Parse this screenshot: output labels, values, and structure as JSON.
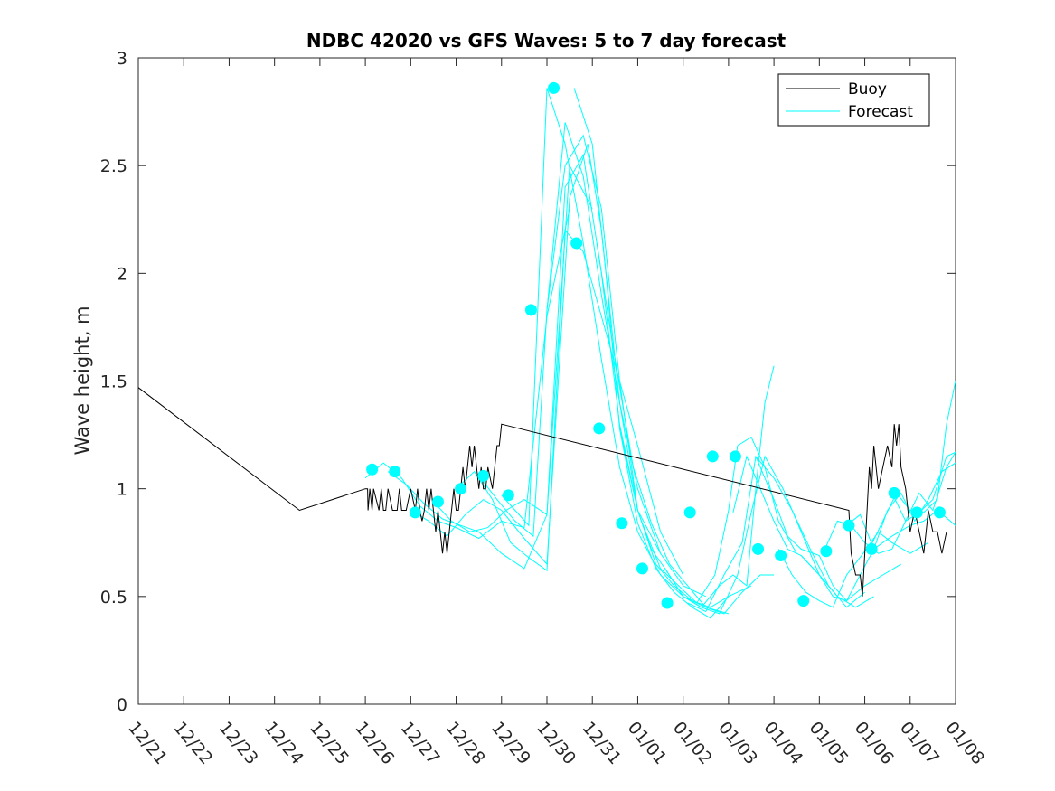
{
  "chart_data": {
    "type": "line",
    "title": "NDBC 42020 vs GFS Waves: 5 to 7 day forecast",
    "xlabel": "",
    "ylabel": "Wave height, m",
    "xlim": [
      0,
      18
    ],
    "ylim": [
      0,
      3
    ],
    "x_ticks": [
      0,
      1,
      2,
      3,
      4,
      5,
      6,
      7,
      8,
      9,
      10,
      11,
      12,
      13,
      14,
      15,
      16,
      17,
      18
    ],
    "x_tick_labels": [
      "12/21",
      "12/22",
      "12/23",
      "12/24",
      "12/25",
      "12/26",
      "12/27",
      "12/28",
      "12/29",
      "12/30",
      "12/31",
      "01/01",
      "01/02",
      "01/03",
      "01/04",
      "01/05",
      "01/06",
      "01/07",
      "01/08"
    ],
    "y_ticks": [
      0,
      0.5,
      1,
      1.5,
      2,
      2.5,
      3
    ],
    "y_tick_labels": [
      "0",
      "0.5",
      "1",
      "1.5",
      "2",
      "2.5",
      "3"
    ],
    "legend": {
      "position": "top-right",
      "entries": [
        {
          "label": "Buoy",
          "color": "#000000"
        },
        {
          "label": "Forecast",
          "color": "#00ffff"
        }
      ]
    },
    "buoy_color": "#000000",
    "forecast_color": "#00ffff",
    "series": [
      {
        "name": "Buoy",
        "x": [
          0,
          3.55,
          5.0,
          5.05,
          5.06,
          5.1,
          5.15,
          5.18,
          5.3,
          5.35,
          5.4,
          5.45,
          5.5,
          5.6,
          5.7,
          5.75,
          5.8,
          5.9,
          6.0,
          6.1,
          6.15,
          6.2,
          6.25,
          6.3,
          6.35,
          6.4,
          6.45,
          6.5,
          6.55,
          6.6,
          6.65,
          6.7,
          6.75,
          6.8,
          6.85,
          6.9,
          6.95,
          7.0,
          7.05,
          7.1,
          7.15,
          7.2,
          7.25,
          7.3,
          7.35,
          7.4,
          7.45,
          7.5,
          7.55,
          7.6,
          7.65,
          7.7,
          7.8,
          7.9,
          7.95,
          8.0,
          15.65,
          15.7,
          15.8,
          15.9,
          15.95,
          16.0,
          16.05,
          16.1,
          16.15,
          16.2,
          16.3,
          16.4,
          16.5,
          16.6,
          16.65,
          16.7,
          16.75,
          16.8,
          16.9,
          17.0,
          17.1,
          17.2,
          17.3,
          17.35,
          17.4,
          17.5,
          17.6,
          17.7,
          17.8
        ],
        "y": [
          1.47,
          0.9,
          1.0,
          1.0,
          0.9,
          1.0,
          0.9,
          1.0,
          0.9,
          1.0,
          0.9,
          0.9,
          1.0,
          0.9,
          0.9,
          1.0,
          0.9,
          0.9,
          1.0,
          0.9,
          1.0,
          0.9,
          0.85,
          0.9,
          1.0,
          0.9,
          1.0,
          0.9,
          0.8,
          0.9,
          0.8,
          0.7,
          0.8,
          0.7,
          0.8,
          0.9,
          1.0,
          0.9,
          0.9,
          1.0,
          1.1,
          1.0,
          1.1,
          1.2,
          1.1,
          1.2,
          1.1,
          1.0,
          1.1,
          1.0,
          1.0,
          1.1,
          1.0,
          1.2,
          1.2,
          1.3,
          0.9,
          0.7,
          0.6,
          0.6,
          0.5,
          0.7,
          0.9,
          1.1,
          1.0,
          1.2,
          1.0,
          1.1,
          1.2,
          1.1,
          1.3,
          1.2,
          1.3,
          1.1,
          1.0,
          0.8,
          0.9,
          0.8,
          0.7,
          0.8,
          0.9,
          0.8,
          0.8,
          0.7,
          0.8
        ]
      },
      {
        "name": "Forecast",
        "x": [
          5.0,
          5.4,
          5.8,
          6.2,
          6.6,
          7.0,
          7.5,
          8.0,
          8.5,
          9.0,
          9.5
        ],
        "y": [
          1.05,
          1.12,
          1.05,
          0.92,
          0.85,
          0.82,
          0.77,
          0.85,
          0.82,
          1.8,
          2.3
        ]
      },
      {
        "name": "Forecast",
        "x": [
          5.5,
          5.9,
          6.3,
          6.7,
          7.1,
          7.5,
          8.0,
          8.5,
          9.0,
          9.5,
          10.0
        ],
        "y": [
          1.08,
          1.02,
          0.93,
          0.86,
          0.83,
          0.8,
          0.7,
          0.63,
          0.88,
          2.5,
          2.3
        ]
      },
      {
        "name": "Forecast",
        "x": [
          6.0,
          6.4,
          6.8,
          7.2,
          7.6,
          8.0,
          8.5,
          9.0,
          9.5,
          9.9,
          10.2,
          10.6,
          11.0
        ],
        "y": [
          0.9,
          0.85,
          0.78,
          0.88,
          0.95,
          0.9,
          0.77,
          0.65,
          2.35,
          2.6,
          2.2,
          1.4,
          0.9
        ]
      },
      {
        "name": "Forecast",
        "x": [
          6.5,
          6.9,
          7.3,
          7.7,
          8.1,
          8.5,
          9.0,
          9.4,
          9.8,
          10.2,
          10.6,
          11.0,
          11.5
        ],
        "y": [
          0.94,
          0.85,
          0.8,
          0.82,
          0.9,
          0.95,
          0.88,
          2.4,
          2.55,
          2.0,
          1.3,
          0.9,
          0.7
        ]
      },
      {
        "name": "Forecast",
        "x": [
          7.0,
          7.4,
          7.8,
          8.2,
          8.6,
          9.0,
          9.4,
          9.8,
          10.2,
          10.6,
          11.0,
          11.5,
          12.0
        ],
        "y": [
          1.0,
          1.08,
          0.95,
          0.75,
          0.68,
          0.62,
          2.2,
          2.1,
          1.8,
          1.5,
          1.2,
          0.8,
          0.6
        ]
      },
      {
        "name": "Forecast",
        "x": [
          7.5,
          7.9,
          8.3,
          8.7,
          9.0,
          9.4,
          9.8,
          10.2,
          10.6,
          11.0,
          11.5,
          12.0,
          12.5
        ],
        "y": [
          1.06,
          0.95,
          0.85,
          0.78,
          1.83,
          2.7,
          2.45,
          1.9,
          1.4,
          1.0,
          0.7,
          0.55,
          0.5
        ]
      },
      {
        "name": "Forecast",
        "x": [
          8.0,
          8.3,
          8.6,
          9.0,
          9.4,
          9.8,
          10.2,
          10.6,
          11.0,
          11.5,
          12.0,
          12.5,
          13.0
        ],
        "y": [
          0.97,
          0.9,
          0.83,
          2.86,
          2.6,
          2.14,
          1.6,
          1.1,
          0.8,
          0.6,
          0.5,
          0.45,
          0.42
        ]
      },
      {
        "name": "Forecast",
        "x": [
          9.0,
          9.4,
          9.8,
          10.2,
          10.6,
          11.0,
          11.4,
          11.8,
          12.2,
          12.6,
          13.0
        ],
        "y": [
          1.83,
          2.5,
          2.64,
          2.3,
          1.5,
          0.9,
          0.65,
          0.55,
          0.48,
          0.45,
          0.5
        ]
      },
      {
        "name": "Forecast",
        "x": [
          9.6,
          10.0,
          10.3,
          10.6,
          11.0,
          11.4,
          11.8,
          12.2,
          12.6,
          13.0,
          13.5
        ],
        "y": [
          2.86,
          2.6,
          2.0,
          1.28,
          0.84,
          0.63,
          0.52,
          0.45,
          0.4,
          0.5,
          0.55
        ]
      },
      {
        "name": "Forecast",
        "x": [
          10.1,
          10.5,
          10.9,
          11.3,
          11.7,
          12.1,
          12.5,
          12.9,
          13.3,
          13.7,
          14.0
        ],
        "y": [
          2.14,
          1.6,
          1.1,
          0.84,
          0.65,
          0.55,
          0.45,
          0.42,
          0.52,
          0.6,
          0.6
        ]
      },
      {
        "name": "Forecast",
        "x": [
          10.6,
          11.0,
          11.3,
          11.6,
          12.0,
          12.4,
          12.8,
          13.1,
          13.4,
          13.6,
          13.8,
          14.0
        ],
        "y": [
          1.28,
          0.9,
          0.72,
          0.63,
          0.5,
          0.45,
          0.55,
          0.6,
          0.55,
          1.0,
          1.4,
          1.57
        ]
      },
      {
        "name": "Forecast",
        "x": [
          11.1,
          11.5,
          11.9,
          12.3,
          12.7,
          13.0,
          13.2,
          13.5,
          13.8,
          14.1,
          14.5
        ],
        "y": [
          0.84,
          0.63,
          0.55,
          0.47,
          0.6,
          0.9,
          1.2,
          1.24,
          1.1,
          0.85,
          0.7
        ]
      },
      {
        "name": "Forecast",
        "x": [
          11.6,
          12.0,
          12.4,
          12.8,
          13.2,
          13.5,
          13.8,
          14.2,
          14.6,
          15.0,
          15.4
        ],
        "y": [
          0.63,
          0.5,
          0.45,
          0.42,
          0.6,
          0.89,
          1.15,
          1.0,
          0.8,
          0.6,
          0.5
        ]
      },
      {
        "name": "Forecast",
        "x": [
          12.1,
          12.5,
          12.9,
          13.3,
          13.6,
          14.0,
          14.4,
          14.8,
          15.2,
          15.6,
          16.0
        ],
        "y": [
          0.47,
          0.43,
          0.6,
          0.75,
          1.15,
          1.05,
          0.9,
          0.72,
          0.55,
          0.45,
          0.52
        ]
      },
      {
        "name": "Forecast",
        "x": [
          13.1,
          13.4,
          13.7,
          14.0,
          14.3,
          14.6,
          15.0,
          15.4,
          15.8,
          16.2
        ],
        "y": [
          0.89,
          1.15,
          1.0,
          0.85,
          0.72,
          0.69,
          0.6,
          0.5,
          0.45,
          0.5
        ]
      },
      {
        "name": "Forecast",
        "x": [
          13.6,
          14.0,
          14.3,
          14.6,
          15.0,
          15.3,
          15.6,
          16.0,
          16.4,
          16.8
        ],
        "y": [
          1.15,
          0.95,
          0.78,
          0.72,
          0.69,
          0.55,
          0.48,
          0.55,
          0.6,
          0.65
        ]
      },
      {
        "name": "Forecast",
        "x": [
          14.1,
          14.4,
          14.7,
          15.0,
          15.3,
          15.6,
          16.0,
          16.3,
          16.6,
          17.0,
          17.4
        ],
        "y": [
          0.72,
          0.6,
          0.52,
          0.48,
          0.45,
          0.6,
          0.71,
          0.8,
          0.75,
          0.7,
          0.75
        ]
      },
      {
        "name": "Forecast",
        "x": [
          14.6,
          15.0,
          15.3,
          15.6,
          15.9,
          16.2,
          16.6,
          17.0,
          17.3,
          17.6,
          18.0
        ],
        "y": [
          0.69,
          0.6,
          0.5,
          0.48,
          0.6,
          0.72,
          0.78,
          0.83,
          0.85,
          0.9,
          0.83
        ]
      },
      {
        "name": "Forecast",
        "x": [
          15.1,
          15.4,
          15.7,
          16.0,
          16.3,
          16.6,
          16.9,
          17.2,
          17.5,
          17.8,
          18.0
        ],
        "y": [
          0.71,
          0.85,
          0.83,
          0.75,
          0.7,
          0.72,
          0.85,
          0.98,
          0.9,
          1.1,
          1.17
        ]
      },
      {
        "name": "Forecast",
        "x": [
          15.6,
          15.9,
          16.2,
          16.5,
          16.8,
          17.1,
          17.4,
          17.7,
          18.0
        ],
        "y": [
          0.83,
          0.88,
          0.72,
          0.9,
          0.98,
          0.85,
          0.95,
          1.08,
          1.12
        ]
      },
      {
        "name": "Forecast",
        "x": [
          16.1,
          16.4,
          16.7,
          17.0,
          17.3,
          17.6,
          17.8,
          18.0
        ],
        "y": [
          0.72,
          0.85,
          0.98,
          0.9,
          0.89,
          0.95,
          1.3,
          1.5
        ]
      },
      {
        "name": "Forecast",
        "x": [
          16.6,
          16.9,
          17.2,
          17.5,
          17.8,
          18.0
        ],
        "y": [
          0.98,
          0.85,
          0.89,
          0.95,
          1.15,
          1.17
        ]
      }
    ],
    "markers": {
      "name": "Forecast start points",
      "x": [
        5.15,
        5.65,
        6.1,
        6.6,
        7.1,
        7.6,
        8.15,
        8.65,
        9.15,
        9.65,
        10.15,
        10.65,
        11.1,
        11.65,
        12.15,
        12.65,
        13.15,
        13.65,
        14.15,
        14.65,
        15.15,
        15.65,
        16.15,
        16.65,
        17.15,
        17.65
      ],
      "y": [
        1.09,
        1.08,
        0.89,
        0.94,
        1.0,
        1.06,
        0.97,
        1.83,
        2.86,
        2.14,
        1.28,
        0.84,
        0.63,
        0.47,
        0.89,
        1.15,
        1.15,
        0.72,
        0.69,
        0.48,
        0.71,
        0.83,
        0.72,
        0.98,
        0.89,
        0.89
      ]
    }
  }
}
